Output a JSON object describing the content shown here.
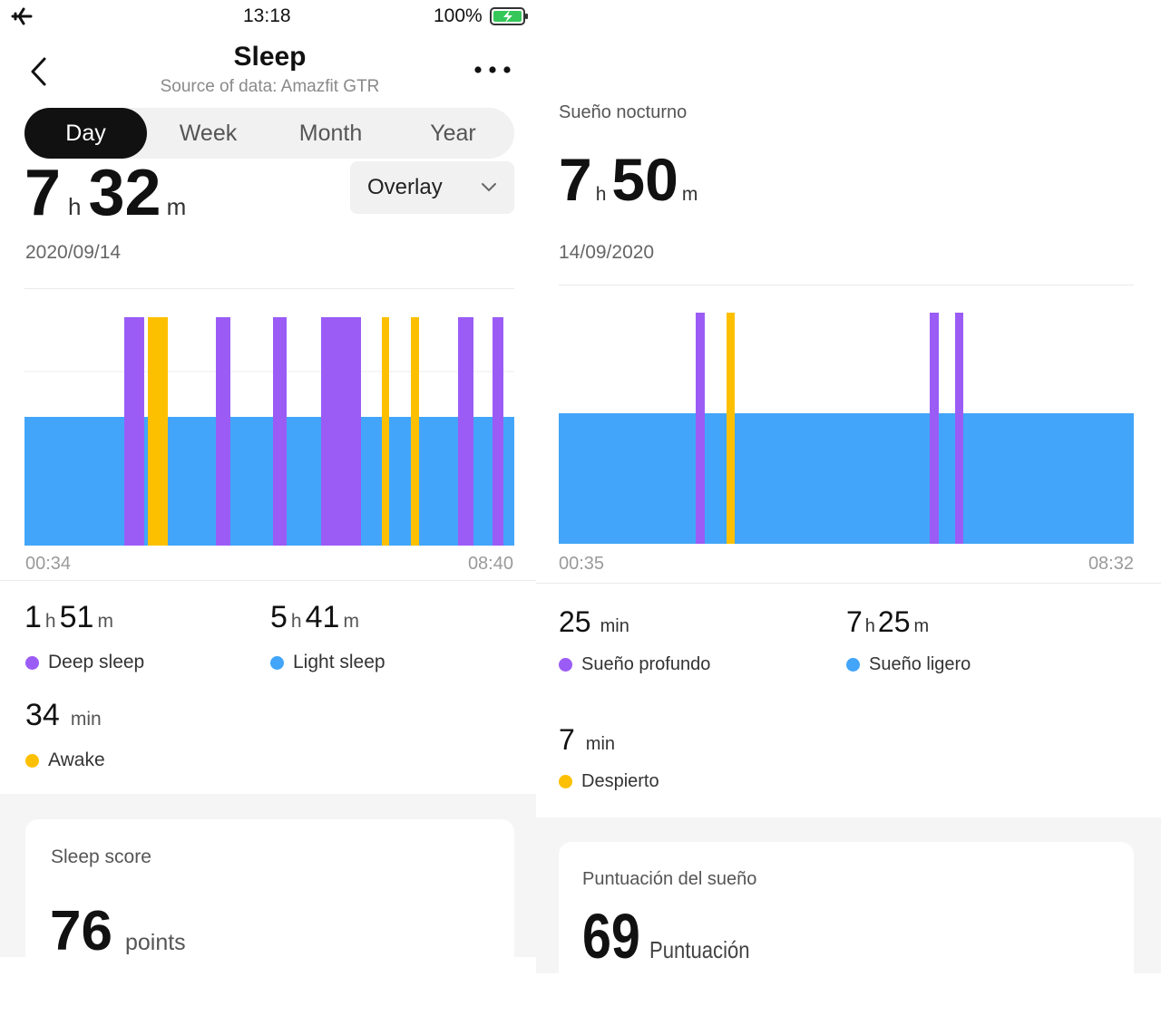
{
  "colors": {
    "light": "#42a5f9",
    "deep": "#9b5cf6",
    "awake": "#fdc000"
  },
  "left": {
    "status": {
      "airplane_icon": "airplane-icon",
      "time": "13:18",
      "battery": "100%"
    },
    "header": {
      "title": "Sleep",
      "source": "Source of data:  Amazfit GTR"
    },
    "tabs": [
      {
        "label": "Day",
        "active": true
      },
      {
        "label": "Week",
        "active": false
      },
      {
        "label": "Month",
        "active": false
      },
      {
        "label": "Year",
        "active": false
      }
    ],
    "dropdown": {
      "label": "Overlay"
    },
    "total": {
      "hours": "7",
      "h_unit": "h",
      "minutes": "32",
      "m_unit": "m"
    },
    "date": "2020/09/14",
    "chart_data": {
      "type": "bar",
      "start": "00:34",
      "end": "08:40",
      "series": [
        "Light sleep",
        "Deep sleep",
        "Awake"
      ]
    },
    "stats": {
      "deep": {
        "hours": "1",
        "h_unit": "h",
        "minutes": "51",
        "m_unit": "m",
        "label": "Deep sleep"
      },
      "light": {
        "hours": "5",
        "h_unit": "h",
        "minutes": "41",
        "m_unit": "m",
        "label": "Light sleep"
      },
      "awake": {
        "value": "34",
        "unit": "min",
        "label": "Awake"
      }
    },
    "score": {
      "title": "Sleep score",
      "value": "76",
      "unit": "points"
    }
  },
  "right": {
    "section_title": "Sueño nocturno",
    "total": {
      "hours": "7",
      "h_unit": "h",
      "minutes": "50",
      "m_unit": "m"
    },
    "date": "14/09/2020",
    "chart_data": {
      "type": "bar",
      "start": "00:35",
      "end": "08:32",
      "series": [
        "Sueño ligero",
        "Sueño profundo",
        "Despierto"
      ]
    },
    "stats": {
      "deep": {
        "value": "25",
        "unit": "min",
        "label": "Sueño profundo"
      },
      "light": {
        "hours": "7",
        "h_unit": "h",
        "minutes": "25",
        "m_unit": "m",
        "label": "Sueño ligero"
      },
      "awake": {
        "value": "7",
        "unit": "min",
        "label": "Despierto"
      }
    },
    "score": {
      "title": "Puntuación del sueño",
      "value": "69",
      "unit": "Puntuación"
    }
  }
}
